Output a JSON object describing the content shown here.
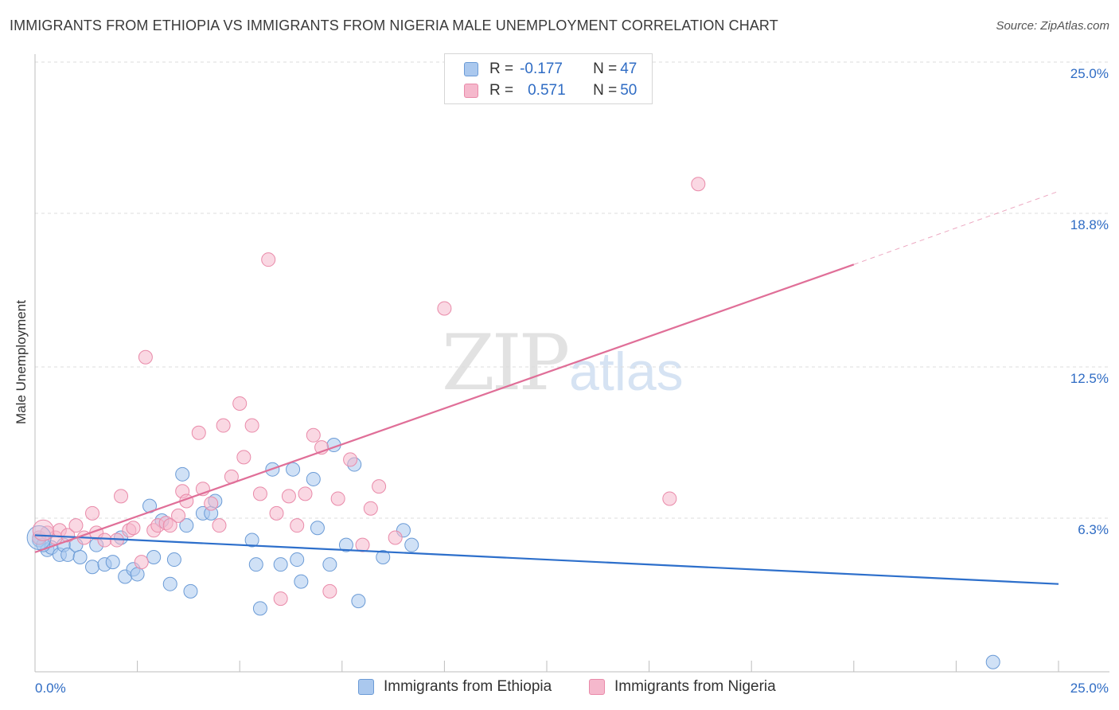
{
  "header": {
    "title": "IMMIGRANTS FROM ETHIOPIA VS IMMIGRANTS FROM NIGERIA MALE UNEMPLOYMENT CORRELATION CHART",
    "source": "Source: ZipAtlas.com"
  },
  "watermark": {
    "zip": "ZIP",
    "atlas": "atlas"
  },
  "legend": {
    "rows": [
      {
        "r_label": "R =",
        "r_value": "-0.177",
        "n_label": "N =",
        "n_value": "47"
      },
      {
        "r_label": "R =",
        "r_value": "0.571",
        "n_label": "N =",
        "n_value": "50"
      }
    ]
  },
  "colors": {
    "ethiopia_fill": "#aac8ee",
    "ethiopia_stroke": "#6b9bd6",
    "ethiopia_line": "#2d6fcb",
    "nigeria_fill": "#f5b8cc",
    "nigeria_stroke": "#e98aa9",
    "nigeria_line": "#e06f98",
    "axis_text": "#2f6cc4",
    "grid": "#dcdcdc"
  },
  "chart_data": {
    "type": "scatter",
    "title": "IMMIGRANTS FROM ETHIOPIA VS IMMIGRANTS FROM NIGERIA MALE UNEMPLOYMENT CORRELATION CHART",
    "xlabel": "",
    "ylabel": "Male Unemployment",
    "xlim": [
      0,
      25
    ],
    "ylim": [
      0,
      25
    ],
    "x_tick_labels": [
      "0.0%",
      "25.0%"
    ],
    "y_tick_values": [
      6.3,
      12.5,
      18.8,
      25.0
    ],
    "y_tick_labels": [
      "6.3%",
      "12.5%",
      "18.8%",
      "25.0%"
    ],
    "grid": true,
    "legend": "top-center",
    "series": [
      {
        "name": "Immigrants from Ethiopia",
        "R": -0.177,
        "N": 47,
        "trend": {
          "x": [
            0,
            25
          ],
          "y": [
            5.6,
            3.6
          ]
        },
        "points": [
          [
            0.1,
            5.4
          ],
          [
            0.3,
            5.0
          ],
          [
            0.4,
            5.1
          ],
          [
            0.6,
            4.8
          ],
          [
            0.7,
            5.2
          ],
          [
            0.8,
            4.8
          ],
          [
            1.0,
            5.2
          ],
          [
            1.1,
            4.7
          ],
          [
            1.4,
            4.3
          ],
          [
            1.5,
            5.2
          ],
          [
            1.7,
            4.4
          ],
          [
            1.9,
            4.5
          ],
          [
            2.1,
            5.5
          ],
          [
            2.2,
            3.9
          ],
          [
            2.4,
            4.2
          ],
          [
            2.5,
            4.0
          ],
          [
            2.8,
            6.8
          ],
          [
            2.9,
            4.7
          ],
          [
            3.1,
            6.2
          ],
          [
            3.3,
            3.6
          ],
          [
            3.4,
            4.6
          ],
          [
            3.6,
            8.1
          ],
          [
            3.7,
            6.0
          ],
          [
            3.8,
            3.3
          ],
          [
            4.1,
            6.5
          ],
          [
            4.3,
            6.5
          ],
          [
            4.4,
            7.0
          ],
          [
            5.3,
            5.4
          ],
          [
            5.4,
            4.4
          ],
          [
            5.5,
            2.6
          ],
          [
            5.8,
            8.3
          ],
          [
            6.0,
            4.4
          ],
          [
            6.3,
            8.3
          ],
          [
            6.4,
            4.6
          ],
          [
            6.5,
            3.7
          ],
          [
            6.8,
            7.9
          ],
          [
            6.9,
            5.9
          ],
          [
            7.2,
            4.4
          ],
          [
            7.3,
            9.3
          ],
          [
            7.6,
            5.2
          ],
          [
            7.8,
            8.5
          ],
          [
            7.9,
            2.9
          ],
          [
            8.5,
            4.7
          ],
          [
            9.0,
            5.8
          ],
          [
            9.2,
            5.2
          ],
          [
            23.4,
            0.4
          ],
          [
            0.2,
            5.2
          ]
        ]
      },
      {
        "name": "Immigrants from Nigeria",
        "R": 0.571,
        "N": 50,
        "trend": {
          "x": [
            0,
            20.0
          ],
          "y": [
            4.9,
            16.7
          ]
        },
        "trend_dashed": {
          "x": [
            20.0,
            25
          ],
          "y": [
            16.7,
            19.7
          ]
        },
        "points": [
          [
            0.1,
            5.5
          ],
          [
            0.3,
            5.7
          ],
          [
            0.5,
            5.5
          ],
          [
            0.6,
            5.8
          ],
          [
            0.8,
            5.6
          ],
          [
            1.0,
            6.0
          ],
          [
            1.2,
            5.5
          ],
          [
            1.4,
            6.5
          ],
          [
            1.5,
            5.7
          ],
          [
            1.7,
            5.4
          ],
          [
            2.0,
            5.4
          ],
          [
            2.1,
            7.2
          ],
          [
            2.3,
            5.8
          ],
          [
            2.4,
            5.9
          ],
          [
            2.6,
            4.5
          ],
          [
            2.7,
            12.9
          ],
          [
            2.9,
            5.8
          ],
          [
            3.0,
            6.0
          ],
          [
            3.2,
            6.1
          ],
          [
            3.3,
            6.0
          ],
          [
            3.5,
            6.4
          ],
          [
            3.6,
            7.4
          ],
          [
            3.7,
            7.0
          ],
          [
            4.0,
            9.8
          ],
          [
            4.1,
            7.5
          ],
          [
            4.3,
            6.9
          ],
          [
            4.5,
            6.0
          ],
          [
            4.6,
            10.1
          ],
          [
            4.8,
            8.0
          ],
          [
            5.0,
            11.0
          ],
          [
            5.1,
            8.8
          ],
          [
            5.3,
            10.1
          ],
          [
            5.5,
            7.3
          ],
          [
            5.7,
            16.9
          ],
          [
            5.9,
            6.5
          ],
          [
            6.0,
            3.0
          ],
          [
            6.2,
            7.2
          ],
          [
            6.4,
            6.0
          ],
          [
            6.6,
            7.3
          ],
          [
            6.8,
            9.7
          ],
          [
            7.0,
            9.2
          ],
          [
            7.2,
            3.3
          ],
          [
            7.4,
            7.1
          ],
          [
            7.7,
            8.7
          ],
          [
            8.0,
            5.2
          ],
          [
            8.2,
            6.7
          ],
          [
            8.4,
            7.6
          ],
          [
            8.8,
            5.5
          ],
          [
            10.0,
            14.9
          ],
          [
            16.2,
            20.0
          ]
        ]
      }
    ],
    "extra_points": [
      {
        "series": "Immigrants from Nigeria",
        "x": 15.5,
        "y": 7.1
      }
    ]
  },
  "bottom_legend": {
    "items": [
      {
        "label": "Immigrants from Ethiopia"
      },
      {
        "label": "Immigrants from Nigeria"
      }
    ]
  }
}
